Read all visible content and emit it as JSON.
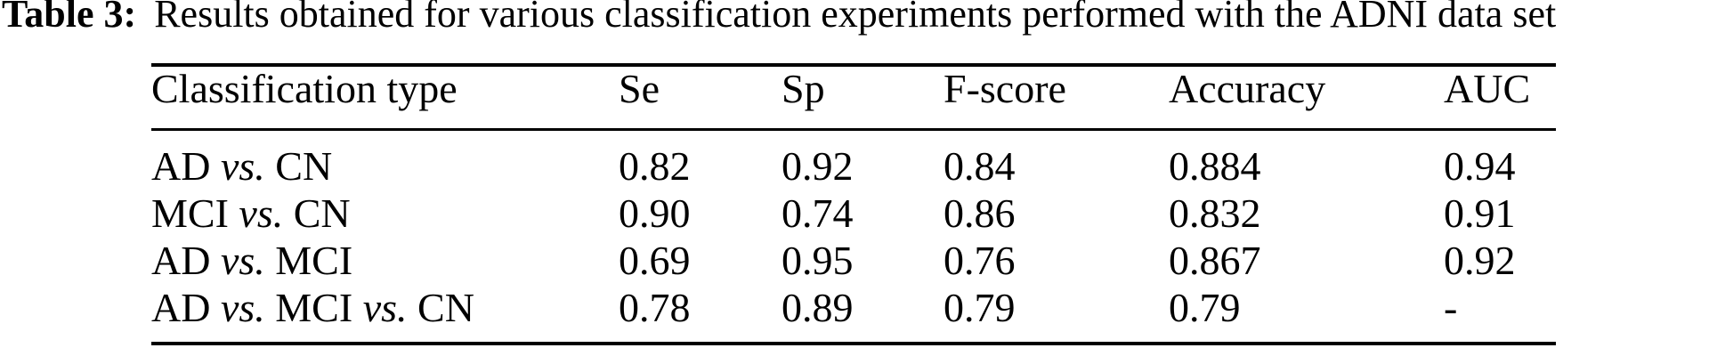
{
  "caption": {
    "label": "Table 3:",
    "text": "Results obtained for various classification experiments performed with the ADNI data set"
  },
  "table": {
    "columns": [
      "Classification type",
      "Se",
      "Sp",
      "F-score",
      "Accuracy",
      "AUC"
    ],
    "rows": [
      {
        "label_parts": [
          "AD",
          "vs.",
          "CN"
        ],
        "values": [
          "0.82",
          "0.92",
          "0.84",
          "0.884",
          "0.94"
        ]
      },
      {
        "label_parts": [
          "MCI",
          "vs.",
          "CN"
        ],
        "values": [
          "0.90",
          "0.74",
          "0.86",
          "0.832",
          "0.91"
        ]
      },
      {
        "label_parts": [
          "AD",
          "vs.",
          "MCI"
        ],
        "values": [
          "0.69",
          "0.95",
          "0.76",
          "0.867",
          "0.92"
        ]
      },
      {
        "label_parts": [
          "AD",
          "vs.",
          "MCI",
          "vs.",
          "CN"
        ],
        "values": [
          "0.78",
          "0.89",
          "0.79",
          "0.79",
          "-"
        ]
      }
    ]
  },
  "chart_data": {
    "type": "table",
    "title": "Table 3: Results obtained for various classification experiments performed with the ADNI data set",
    "categories": [
      "Classification type",
      "Se",
      "Sp",
      "F-score",
      "Accuracy",
      "AUC"
    ],
    "series": [
      {
        "name": "AD vs. CN",
        "values": [
          0.82,
          0.92,
          0.84,
          0.884,
          0.94
        ]
      },
      {
        "name": "MCI vs. CN",
        "values": [
          0.9,
          0.74,
          0.86,
          0.832,
          0.91
        ]
      },
      {
        "name": "AD vs. MCI",
        "values": [
          0.69,
          0.95,
          0.76,
          0.867,
          0.92
        ]
      },
      {
        "name": "AD vs. MCI vs. CN",
        "values": [
          0.78,
          0.89,
          0.79,
          0.79,
          null
        ]
      }
    ]
  },
  "colors": {
    "text": "#000000",
    "background": "#ffffff",
    "rule": "#000000"
  }
}
